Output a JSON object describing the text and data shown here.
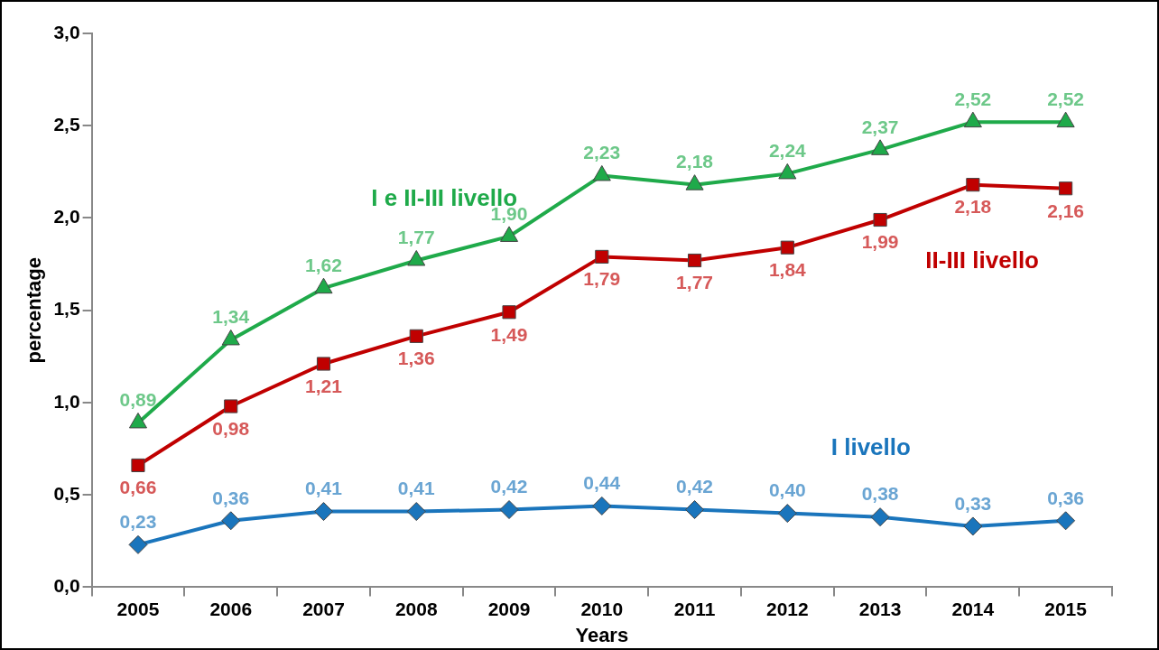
{
  "chart_data": {
    "type": "line",
    "xlabel": "Years",
    "ylabel": "percentage",
    "categories": [
      "2005",
      "2006",
      "2007",
      "2008",
      "2009",
      "2010",
      "2011",
      "2012",
      "2013",
      "2014",
      "2015"
    ],
    "ylim": [
      0,
      3
    ],
    "yticks": [
      {
        "value": 0,
        "label": "0,0"
      },
      {
        "value": 0.5,
        "label": "0,5"
      },
      {
        "value": 1,
        "label": "1,0"
      },
      {
        "value": 1.5,
        "label": "1,5"
      },
      {
        "value": 2,
        "label": "2,0"
      },
      {
        "value": 2.5,
        "label": "2,5"
      },
      {
        "value": 3,
        "label": "3,0"
      }
    ],
    "grid": false,
    "legend": false,
    "line_style": "solid",
    "series": [
      {
        "name": "I e II-III livello",
        "color": "#1faa4a",
        "marker": "triangle",
        "values": [
          0.89,
          1.34,
          1.62,
          1.77,
          1.9,
          2.23,
          2.18,
          2.24,
          2.37,
          2.52,
          2.52
        ],
        "value_labels": [
          "0,89",
          "1,34",
          "1,62",
          "1,77",
          "1,90",
          "2,23",
          "2,18",
          "2,24",
          "2,37",
          "2,52",
          "2,52"
        ]
      },
      {
        "name": "II-III livello",
        "color": "#c00000",
        "marker": "square",
        "values": [
          0.66,
          0.98,
          1.21,
          1.36,
          1.49,
          1.79,
          1.77,
          1.84,
          1.99,
          2.18,
          2.16
        ],
        "value_labels": [
          "0,66",
          "0,98",
          "1,21",
          "1,36",
          "1,49",
          "1,79",
          "1,77",
          "1,84",
          "1,99",
          "2,18",
          "2,16"
        ]
      },
      {
        "name": "I livello",
        "color": "#1a75bc",
        "marker": "diamond",
        "values": [
          0.23,
          0.36,
          0.41,
          0.41,
          0.42,
          0.44,
          0.42,
          0.4,
          0.38,
          0.33,
          0.36
        ],
        "value_labels": [
          "0,23",
          "0,36",
          "0,41",
          "0,41",
          "0,42",
          "0,44",
          "0,42",
          "0,40",
          "0,38",
          "0,33",
          "0,36"
        ]
      }
    ]
  }
}
